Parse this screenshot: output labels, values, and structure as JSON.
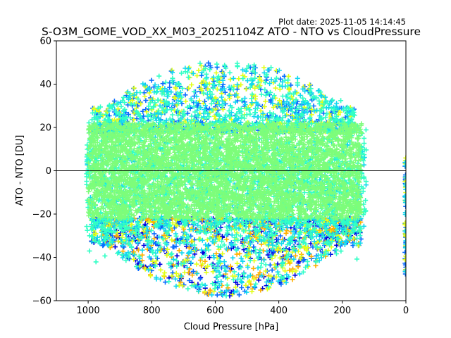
{
  "chart_data": {
    "type": "scatter",
    "title": "S-O3M_GOME_VOD_XX_M03_20251104Z ATO - NTO vs CloudPressure",
    "subtitle": "Plot date: 2025-11-05 14:14:45",
    "xlabel": "Cloud Pressure [hPa]",
    "ylabel": "ATO - NTO [DU]",
    "xlim": [
      1100,
      0
    ],
    "ylim": [
      -60,
      60
    ],
    "x_ticks": [
      1000,
      800,
      600,
      400,
      200,
      0
    ],
    "y_ticks": [
      60,
      40,
      20,
      0,
      -20,
      -40,
      -60
    ],
    "reference_line_y": 0,
    "marker": "+",
    "grid": false,
    "series_colors": {
      "dark_blue": "#0000dd",
      "blue": "#0a6cff",
      "cyan": "#11d8f0",
      "aquamarine": "#31ffc5",
      "light_green": "#7dfd7a",
      "yellow": "#e2ff18",
      "orange": "#ffb000"
    },
    "point_cloud": {
      "core": {
        "x_range": [
          1000,
          140
        ],
        "y_range": [
          -22,
          22
        ],
        "color": "light_green"
      },
      "upper_envelope": {
        "x_range": [
          990,
          160
        ],
        "y_range": [
          18,
          51
        ],
        "colors": [
          "yellow",
          "cyan",
          "aquamarine",
          "blue"
        ]
      },
      "lower_envelope": {
        "x_range": [
          990,
          140
        ],
        "y_range": [
          -58,
          -22
        ],
        "colors": [
          "cyan",
          "aquamarine",
          "blue",
          "dark_blue",
          "yellow",
          "orange"
        ]
      },
      "edge_column": {
        "x": 0,
        "y_range": [
          -48,
          6
        ],
        "colors": [
          "cyan",
          "yellow",
          "blue"
        ]
      }
    }
  }
}
